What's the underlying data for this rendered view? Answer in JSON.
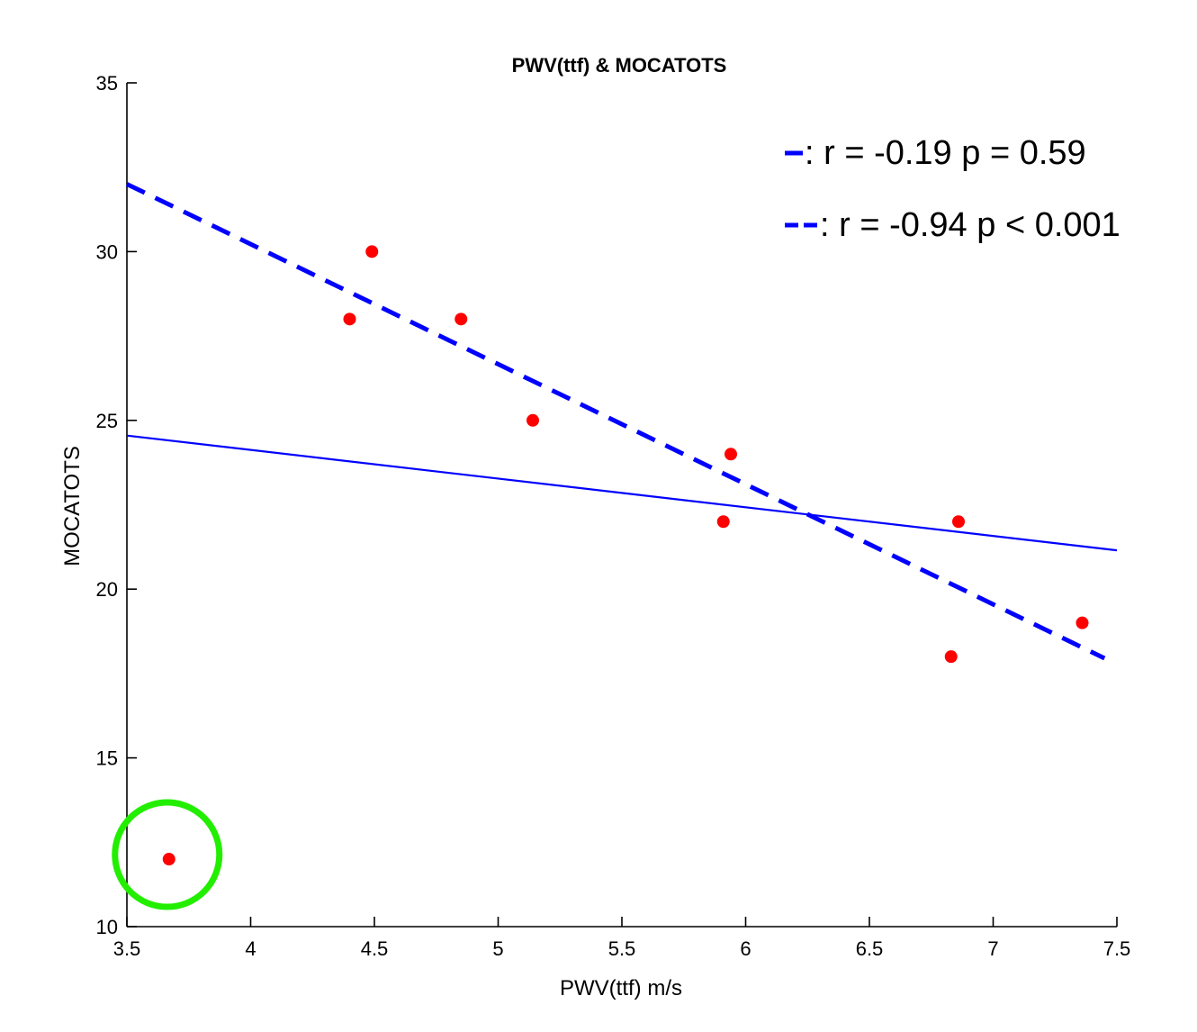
{
  "chart_data": {
    "type": "scatter",
    "title": "PWV(ttf) & MOCATOTS",
    "xlabel": "PWV(ttf) m/s",
    "ylabel": "MOCATOTS",
    "xlim": [
      3.5,
      7.5
    ],
    "ylim": [
      10,
      35
    ],
    "xticks": [
      "3.5",
      "4",
      "4.5",
      "5",
      "5.5",
      "6",
      "6.5",
      "7",
      "7.5"
    ],
    "yticks": [
      "10",
      "15",
      "20",
      "25",
      "30",
      "35"
    ],
    "grid": false,
    "points": [
      {
        "x": 3.67,
        "y": 12
      },
      {
        "x": 4.4,
        "y": 28
      },
      {
        "x": 4.49,
        "y": 30
      },
      {
        "x": 4.85,
        "y": 28
      },
      {
        "x": 5.14,
        "y": 25
      },
      {
        "x": 5.91,
        "y": 22
      },
      {
        "x": 5.94,
        "y": 24
      },
      {
        "x": 6.83,
        "y": 18
      },
      {
        "x": 6.86,
        "y": 22
      },
      {
        "x": 7.36,
        "y": 19
      }
    ],
    "point_color": "#ff0000",
    "lines": [
      {
        "label": ": r = -0.19 p = 0.59",
        "style": "solid",
        "color": "#0000ff",
        "x": [
          3.5,
          7.5
        ],
        "y": [
          24.55,
          21.15
        ]
      },
      {
        "label": ": r = -0.94 p < 0.001",
        "style": "dashed",
        "color": "#0000ff",
        "x": [
          3.5,
          7.45
        ],
        "y": [
          32.0,
          17.95
        ]
      }
    ],
    "highlight": {
      "shape": "circle",
      "color": "#22ee00",
      "x": 3.67,
      "y": 12
    },
    "legend_position": "top-right"
  }
}
